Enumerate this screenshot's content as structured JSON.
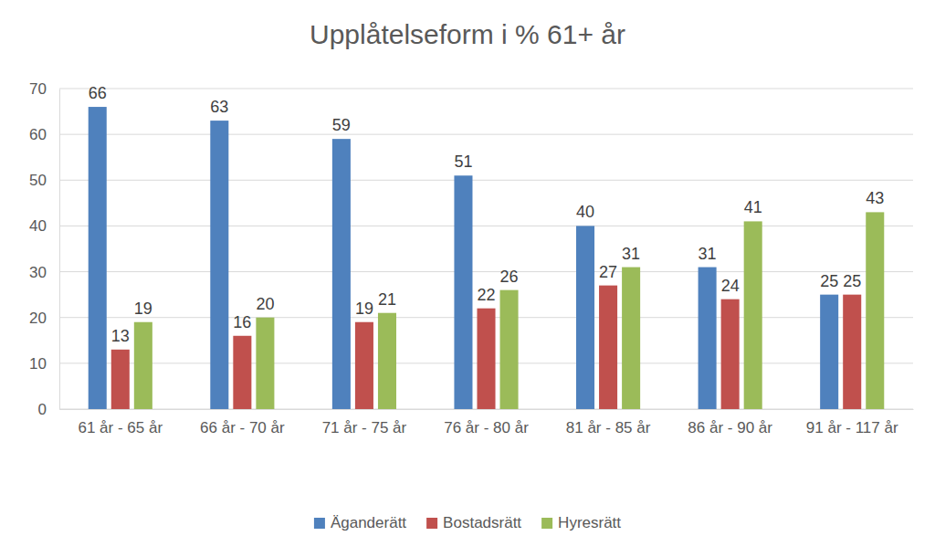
{
  "chart_data": {
    "type": "bar",
    "title": "Upplåtelseform i % 61+ år",
    "categories": [
      "61 år - 65 år",
      "66 år - 70 år",
      "71 år - 75 år",
      "76 år - 80 år",
      "81 år - 85 år",
      "86 år - 90 år",
      "91 år - 117 år"
    ],
    "series": [
      {
        "name": "Äganderätt",
        "color": "#4f81bd",
        "values": [
          66,
          63,
          59,
          51,
          40,
          31,
          25
        ]
      },
      {
        "name": "Bostadsrätt",
        "color": "#c0504d",
        "values": [
          13,
          16,
          19,
          22,
          27,
          24,
          25
        ]
      },
      {
        "name": "Hyresrätt",
        "color": "#9bbb59",
        "values": [
          19,
          20,
          21,
          26,
          31,
          41,
          43
        ]
      }
    ],
    "ylim": [
      0,
      70
    ],
    "yticks": [
      0,
      10,
      20,
      30,
      40,
      50,
      60,
      70
    ],
    "grid": true,
    "data_labels": true,
    "legend": "bottom"
  }
}
